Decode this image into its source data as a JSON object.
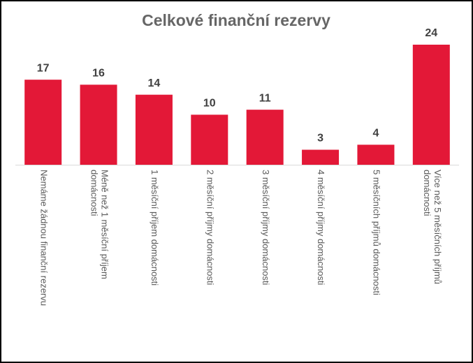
{
  "chart_data": {
    "type": "bar",
    "title": "Celkové finanční rezervy",
    "categories": [
      "Nemáme žádnou finanční rezervu",
      "Méně než 1 měsíční příjem domácnosti",
      "1 měsíční příjem domácnosti",
      "2 měsíční příjmy domácnosti",
      "3 měsíční příjmy domácnosti",
      "4 měsíční příjmy domácnosti",
      "5 měsíčních příjmů domácnosti",
      "Více než 5 měsíčních příjmů domácnosti"
    ],
    "values": [
      17,
      16,
      14,
      10,
      11,
      3,
      4,
      24
    ],
    "color": "#e31837"
  }
}
